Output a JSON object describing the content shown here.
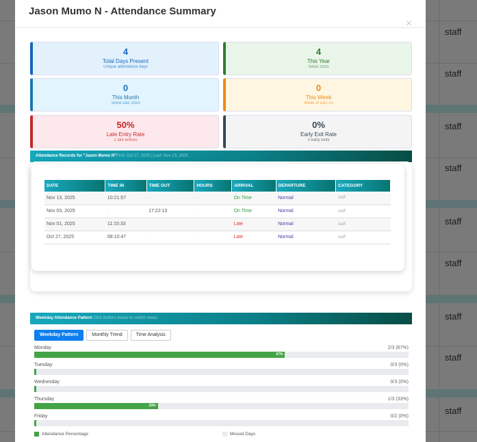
{
  "modal": {
    "title": "Jason Mumo N - Attendance Summary",
    "close": "×"
  },
  "background": {
    "cells": [
      "staff",
      "staff",
      "staff",
      "staff",
      "staff",
      "staff",
      "staff",
      "staff",
      "staff"
    ]
  },
  "cards": [
    {
      "value": "4",
      "label": "Total Days Present",
      "sub": "Unique attendance days",
      "color": "#1565c0",
      "bg": "#e3f1fd"
    },
    {
      "value": "4",
      "label": "This Year",
      "sub": "Since 2025",
      "color": "#2e7d32",
      "bg": "#eaf5e9"
    },
    {
      "value": "0",
      "label": "This Month",
      "sub": "Since Dec 2025",
      "color": "#1b75b5",
      "bg": "#e2f4fd"
    },
    {
      "value": "0",
      "label": "This Week",
      "sub": "Week of Dec 15",
      "color": "#ef8a14",
      "bg": "#fff6e1"
    },
    {
      "value": "50%",
      "label": "Late Entry Rate",
      "sub": "2 late entries",
      "color": "#c62828",
      "bg": "#fde8eb"
    },
    {
      "value": "0%",
      "label": "Early Exit Rate",
      "sub": "0 early exits",
      "color": "#37474f",
      "bg": "#f4f4f5"
    }
  ],
  "records": {
    "title": "Attendance Records for \"Jason Mumo N\"",
    "subtitle": "First: Oct 27, 2025 | Last: Nov 13, 2025",
    "columns": [
      "DATE",
      "TIME IN",
      "TIME OUT",
      "HOURS",
      "ARRIVAL",
      "DEPARTURE",
      "CATEGORY"
    ],
    "rows": [
      [
        "Nov 13, 2025",
        "10:21:57",
        "-",
        "-",
        "On Time",
        "Normal",
        "staff"
      ],
      [
        "Nov 03, 2025",
        "-",
        "17:22:13",
        "-",
        "On Time",
        "Normal",
        "staff"
      ],
      [
        "Nov 01, 2025",
        "11:15:33",
        "-",
        "-",
        "Late",
        "Normal",
        "staff"
      ],
      [
        "Oct 27, 2025",
        "08:10:47",
        "-",
        "-",
        "Late",
        "Normal",
        "staff"
      ]
    ]
  },
  "weekday": {
    "title": "Weekday Attendance Pattern",
    "subtitle": "Click buttons below to switch views",
    "tabs": [
      "Weekday Pattern",
      "Monthly Trend",
      "Time Analysis"
    ],
    "days": [
      {
        "name": "Monday",
        "count": "2/3 (67%)",
        "percent": 67,
        "label": "67%"
      },
      {
        "name": "Tuesday",
        "count": "0/3 (0%)",
        "percent": 0,
        "label": ""
      },
      {
        "name": "Wednesday",
        "count": "0/3 (0%)",
        "percent": 0,
        "label": ""
      },
      {
        "name": "Thursday",
        "count": "1/3 (33%)",
        "percent": 33,
        "label": "33%"
      },
      {
        "name": "Friday",
        "count": "0/2 (0%)",
        "percent": 0,
        "label": ""
      }
    ],
    "legend": [
      "Attendance Percentage",
      "Missed Days"
    ],
    "colors": {
      "present": "#43a447",
      "missed": "#e9ebee"
    }
  }
}
